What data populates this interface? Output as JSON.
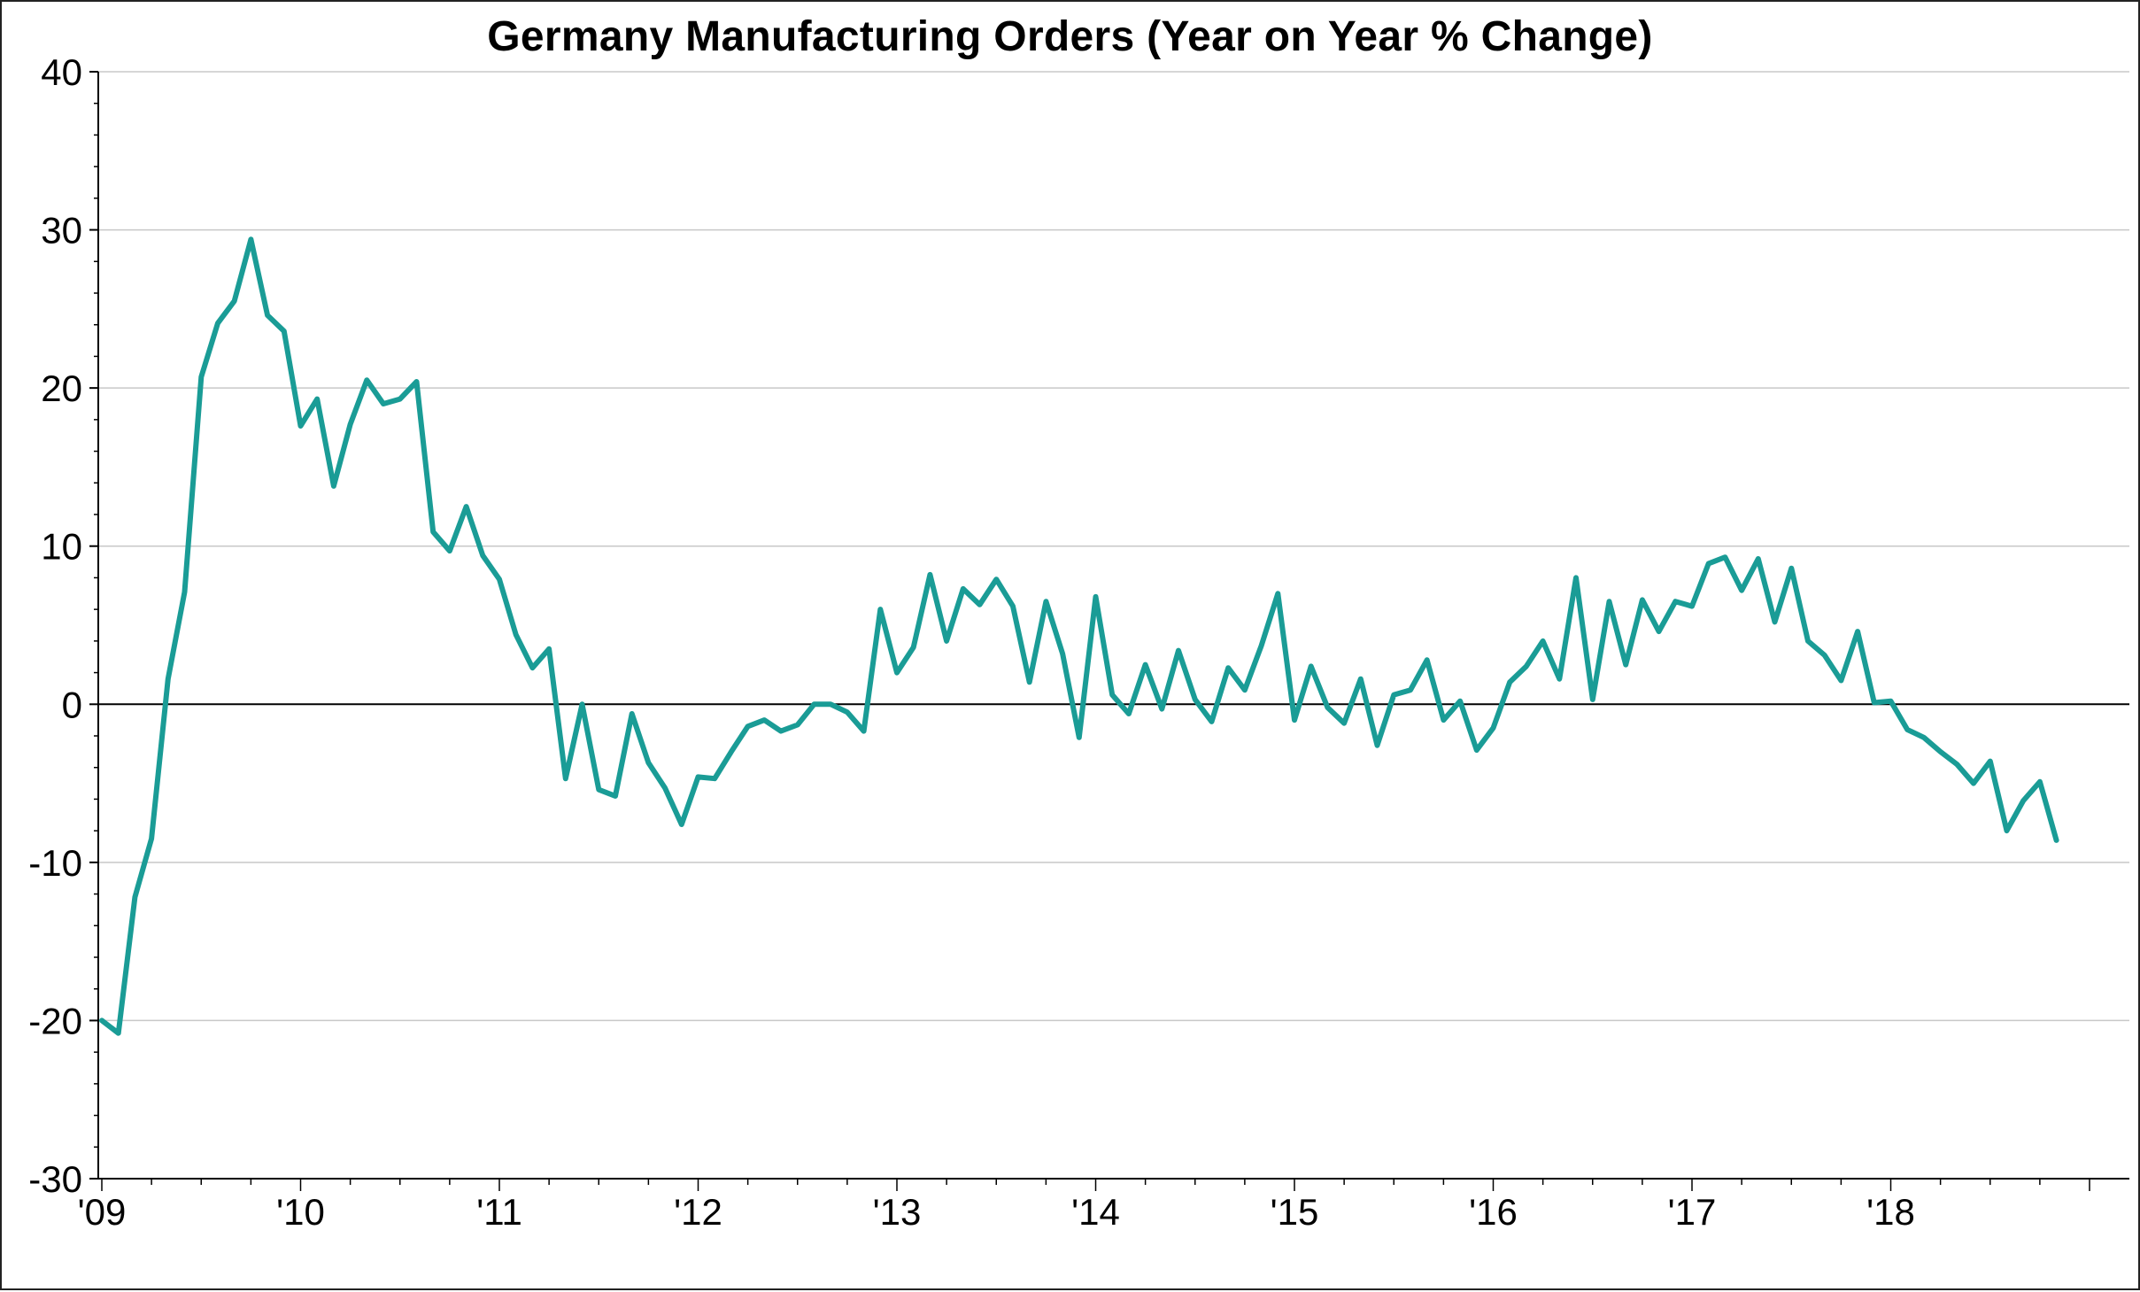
{
  "chart_data": {
    "type": "line",
    "title": "Germany Manufacturing Orders (Year on Year % Change)",
    "xlabel": "",
    "ylabel": "",
    "ylim": [
      -30,
      40
    ],
    "yticks": [
      "-30",
      "-20",
      "-10",
      "0",
      "10",
      "20",
      "30",
      "40"
    ],
    "xticks": [
      "'09",
      "'10",
      "'11",
      "'12",
      "'13",
      "'14",
      "'15",
      "'16",
      "'17",
      "'18"
    ],
    "x_start": "2009-01",
    "frequency": "monthly",
    "grid": "horizontal",
    "zero_line": true,
    "line_color": "#1a9c96",
    "series": [
      {
        "values": [
          -20.0,
          -20.8,
          -12.2,
          -8.5,
          1.6,
          7.1,
          20.7,
          24.1,
          25.5,
          29.4,
          24.6,
          23.6,
          17.6,
          19.3,
          13.8,
          17.7,
          20.5,
          19.0,
          19.3,
          20.4,
          10.9,
          9.7,
          12.5,
          9.4,
          7.9,
          4.4,
          2.3,
          3.5,
          -4.7,
          0.0,
          -5.4,
          -5.8,
          -0.6,
          -3.7,
          -5.3,
          -7.6,
          -4.6,
          -4.7,
          -3.0,
          -1.4,
          -1.0,
          -1.7,
          -1.3,
          0.0,
          0.0,
          -0.5,
          -1.7,
          6.0,
          2.0,
          3.6,
          8.2,
          4.0,
          7.3,
          6.3,
          7.9,
          6.2,
          1.4,
          6.5,
          3.2,
          -2.1,
          6.8,
          0.6,
          -0.6,
          2.5,
          -0.3,
          3.4,
          0.3,
          -1.1,
          2.3,
          0.9,
          3.7,
          7.0,
          -1.0,
          2.4,
          -0.2,
          -1.2,
          1.6,
          -2.6,
          0.6,
          0.9,
          2.8,
          -1.0,
          0.2,
          -2.9,
          -1.5,
          1.4,
          2.4,
          4.0,
          1.6,
          8.0,
          0.3,
          6.5,
          2.5,
          6.6,
          4.6,
          6.5,
          6.2,
          8.9,
          9.3,
          7.2,
          9.2,
          5.2,
          8.6,
          4.0,
          3.1,
          1.5,
          4.6,
          0.1,
          0.2,
          -1.6,
          -2.1,
          -3.0,
          -3.8,
          -5.0,
          -3.6,
          -8.0,
          -6.1,
          -4.9,
          -8.6
        ]
      }
    ]
  }
}
